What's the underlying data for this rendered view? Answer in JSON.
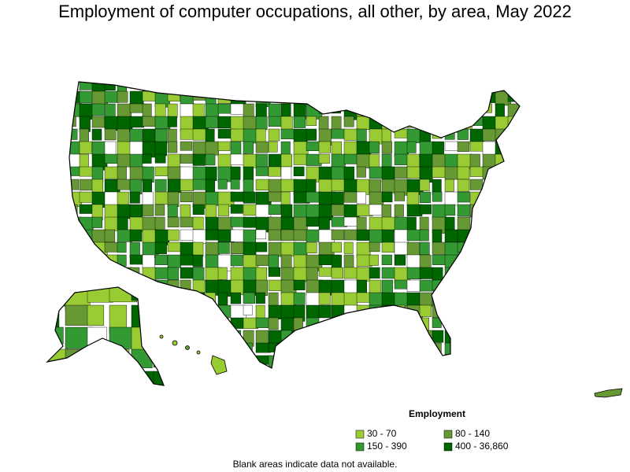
{
  "title": "Employment of computer occupations, all other, by area, May 2022",
  "legend": {
    "title": "Employment",
    "items": [
      {
        "label": "30 - 70",
        "color": "#99cc33"
      },
      {
        "label": "80 - 140",
        "color": "#669933"
      },
      {
        "label": "150 - 390",
        "color": "#339933"
      },
      {
        "label": "400 - 36,860",
        "color": "#006600"
      }
    ]
  },
  "note": "Blank areas indicate data not available."
}
